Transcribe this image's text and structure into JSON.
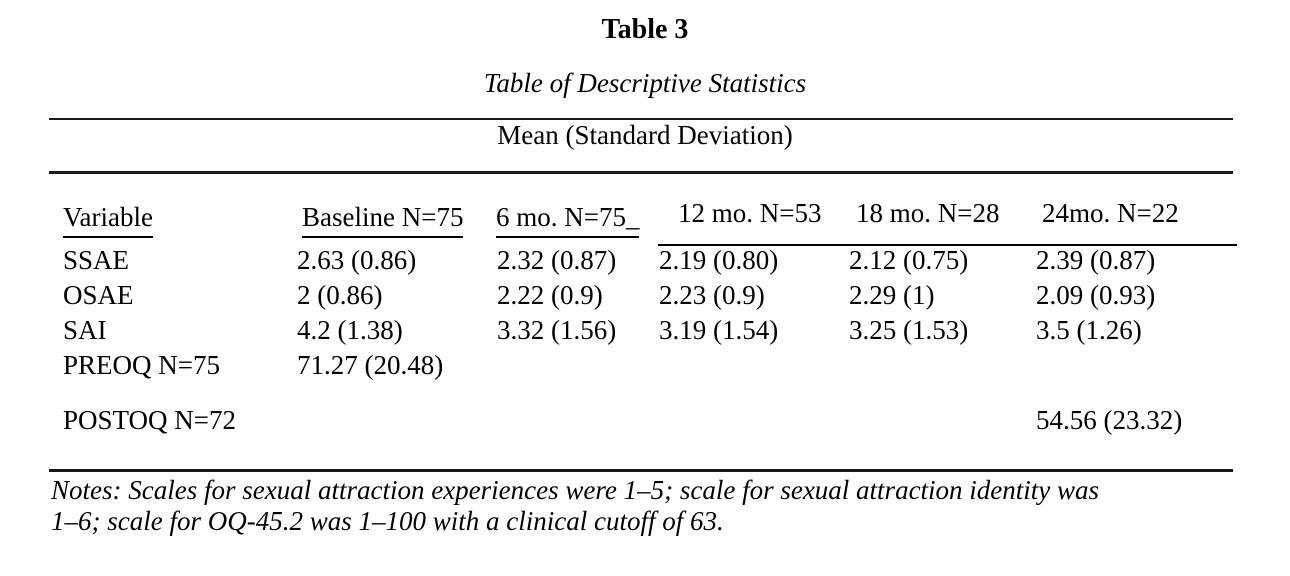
{
  "doc": {
    "title": "Table 3",
    "subtitle": "Table of Descriptive Statistics",
    "spanner": "Mean (Standard Deviation)",
    "notes": {
      "line1": "Notes: Scales for sexual attraction experiences were 1–5; scale for sexual attraction identity was",
      "line2": "1–6; scale for OQ-45.2 was 1–100 with a clinical cutoff of 63."
    },
    "colors": {
      "background": "#ffffff",
      "text": "#000000",
      "rule": "#1a1a1a"
    }
  },
  "table": {
    "headers": {
      "variable": "Variable",
      "baseline": "Baseline N=75",
      "mo6": "6 mo. N=75_",
      "mo12": "12 mo. N=53",
      "mo18": "18 mo. N=28",
      "mo24": "24mo. N=22"
    },
    "rows": [
      {
        "label": "SSAE",
        "baseline": "2.63 (0.86)",
        "mo6": "2.32 (0.87)",
        "mo12": "2.19 (0.80)",
        "mo18": "2.12 (0.75)",
        "mo24": "2.39 (0.87)"
      },
      {
        "label": "OSAE",
        "baseline": "2 (0.86)",
        "mo6": "2.22 (0.9)",
        "mo12": "2.23 (0.9)",
        "mo18": "2.29 (1)",
        "mo24": "2.09 (0.93)"
      },
      {
        "label": "SAI",
        "baseline": "4.2 (1.38)",
        "mo6": "3.32 (1.56)",
        "mo12": "3.19 (1.54)",
        "mo18": "3.25 (1.53)",
        "mo24": "3.5 (1.26)"
      },
      {
        "label": "PREOQ N=75",
        "baseline": "71.27 (20.48)",
        "mo6": "",
        "mo12": "",
        "mo18": "",
        "mo24": ""
      },
      {
        "label": "POSTOQ N=72",
        "baseline": "",
        "mo6": "",
        "mo12": "",
        "mo18": "",
        "mo24": "54.56 (23.32)"
      }
    ]
  }
}
